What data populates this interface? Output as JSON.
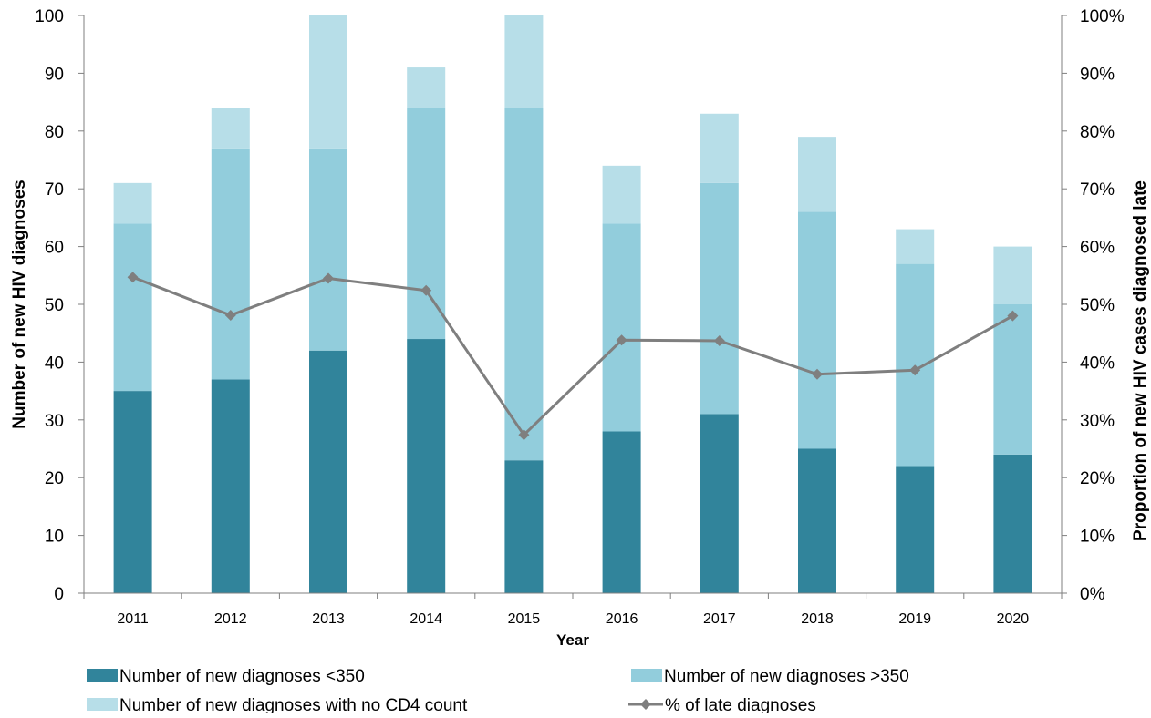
{
  "chart_data": {
    "type": "bar",
    "stacked": true,
    "categories": [
      "2011",
      "2012",
      "2013",
      "2014",
      "2015",
      "2016",
      "2017",
      "2018",
      "2019",
      "2020"
    ],
    "series": [
      {
        "name": "Number of new diagnoses <350",
        "type": "bar",
        "axis": "left",
        "color": "#31849B",
        "values": [
          35,
          37,
          42,
          44,
          23,
          28,
          31,
          25,
          22,
          24
        ]
      },
      {
        "name": "Number of new diagnoses >350",
        "type": "bar",
        "axis": "left",
        "color": "#92CDDC",
        "values": [
          29,
          40,
          35,
          40,
          61,
          36,
          40,
          41,
          35,
          26
        ]
      },
      {
        "name": "Number of new diagnoses with no CD4 count",
        "type": "bar",
        "axis": "left",
        "color": "#B7DEE8",
        "values": [
          7,
          7,
          23,
          7,
          16,
          10,
          12,
          13,
          6,
          10
        ]
      },
      {
        "name": "% of late diagnoses",
        "type": "line",
        "axis": "right",
        "color": "#7F7F7F",
        "marker": "diamond",
        "values": [
          54.7,
          48.1,
          54.5,
          52.4,
          27.4,
          43.8,
          43.7,
          37.9,
          38.6,
          48.0
        ]
      }
    ],
    "xlabel": "Year",
    "ylabel": "Number of new HIV diagnoses",
    "y2label": "Proportion of new HIV cases diagnosed late",
    "ylim": [
      0,
      100
    ],
    "y2lim": [
      0,
      100
    ],
    "yticks": [
      "0",
      "10",
      "20",
      "30",
      "40",
      "50",
      "60",
      "70",
      "80",
      "90",
      "100"
    ],
    "y2ticks": [
      "0%",
      "10%",
      "20%",
      "30%",
      "40%",
      "50%",
      "60%",
      "70%",
      "80%",
      "90%",
      "100%"
    ],
    "grid": false,
    "legend_position": "bottom"
  }
}
